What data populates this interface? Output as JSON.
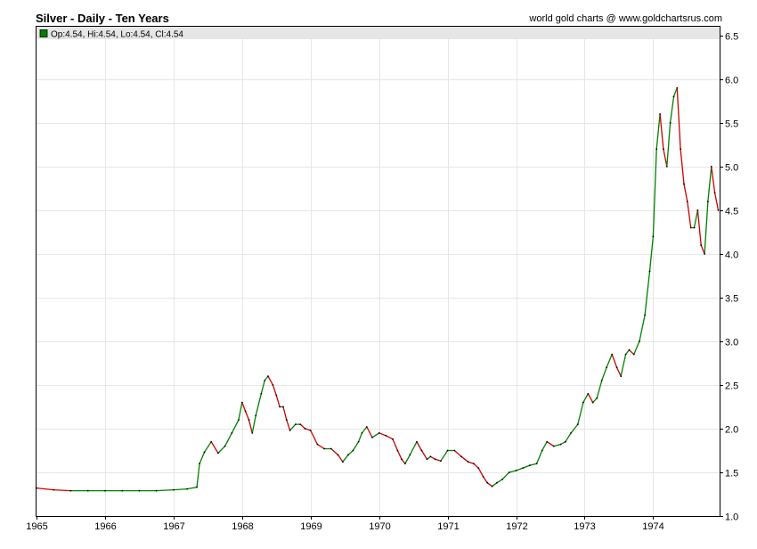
{
  "header": {
    "title": "Silver - Daily - Ten Years",
    "credit": "world gold charts @ www.goldchartsrus.com"
  },
  "legend": {
    "label": "Op:4.54, Hi:4.54, Lo:4.54, Cl:4.54",
    "swatch_color": "#008000"
  },
  "colors": {
    "up": "#008000",
    "down": "#cc0000",
    "grid": "#e6e6e6",
    "legend_bar": "#e6e6e6"
  },
  "chart_data": {
    "type": "line",
    "title": "Silver - Daily - Ten Years",
    "xlabel": "",
    "ylabel": "",
    "x_ticks": [
      "1965",
      "1966",
      "1967",
      "1968",
      "1969",
      "1970",
      "1971",
      "1972",
      "1973",
      "1974"
    ],
    "y_ticks": [
      "1.0",
      "1.5",
      "2.0",
      "2.5",
      "3.0",
      "3.5",
      "4.0",
      "4.5",
      "5.0",
      "5.5",
      "6.0",
      "6.5"
    ],
    "xlim": [
      1965.0,
      1974.97
    ],
    "ylim": [
      1.0,
      6.6
    ],
    "y_axis_position": "right",
    "grid": true,
    "legend_position": "top-left",
    "series": [
      {
        "values": [
          [
            1965.0,
            1.32
          ],
          [
            1965.25,
            1.3
          ],
          [
            1965.5,
            1.29
          ],
          [
            1965.75,
            1.29
          ],
          [
            1966.0,
            1.29
          ],
          [
            1966.25,
            1.29
          ],
          [
            1966.5,
            1.29
          ],
          [
            1966.75,
            1.29
          ],
          [
            1967.0,
            1.3
          ],
          [
            1967.2,
            1.31
          ],
          [
            1967.34,
            1.33
          ],
          [
            1967.38,
            1.6
          ],
          [
            1967.45,
            1.73
          ],
          [
            1967.55,
            1.85
          ],
          [
            1967.65,
            1.72
          ],
          [
            1967.75,
            1.8
          ],
          [
            1967.85,
            1.95
          ],
          [
            1967.95,
            2.1
          ],
          [
            1968.0,
            2.3
          ],
          [
            1968.05,
            2.2
          ],
          [
            1968.1,
            2.1
          ],
          [
            1968.15,
            1.95
          ],
          [
            1968.2,
            2.15
          ],
          [
            1968.28,
            2.4
          ],
          [
            1968.33,
            2.55
          ],
          [
            1968.38,
            2.6
          ],
          [
            1968.45,
            2.5
          ],
          [
            1968.5,
            2.38
          ],
          [
            1968.55,
            2.25
          ],
          [
            1968.6,
            2.25
          ],
          [
            1968.65,
            2.1
          ],
          [
            1968.7,
            1.98
          ],
          [
            1968.78,
            2.05
          ],
          [
            1968.85,
            2.05
          ],
          [
            1968.92,
            2.0
          ],
          [
            1969.0,
            1.98
          ],
          [
            1969.1,
            1.82
          ],
          [
            1969.2,
            1.77
          ],
          [
            1969.3,
            1.77
          ],
          [
            1969.4,
            1.7
          ],
          [
            1969.47,
            1.62
          ],
          [
            1969.55,
            1.7
          ],
          [
            1969.62,
            1.75
          ],
          [
            1969.7,
            1.85
          ],
          [
            1969.75,
            1.95
          ],
          [
            1969.82,
            2.02
          ],
          [
            1969.9,
            1.9
          ],
          [
            1970.0,
            1.95
          ],
          [
            1970.1,
            1.92
          ],
          [
            1970.2,
            1.88
          ],
          [
            1970.27,
            1.75
          ],
          [
            1970.33,
            1.65
          ],
          [
            1970.38,
            1.6
          ],
          [
            1970.45,
            1.7
          ],
          [
            1970.55,
            1.85
          ],
          [
            1970.62,
            1.75
          ],
          [
            1970.7,
            1.65
          ],
          [
            1970.75,
            1.68
          ],
          [
            1970.82,
            1.65
          ],
          [
            1970.9,
            1.63
          ],
          [
            1971.0,
            1.75
          ],
          [
            1971.1,
            1.75
          ],
          [
            1971.2,
            1.68
          ],
          [
            1971.3,
            1.62
          ],
          [
            1971.38,
            1.6
          ],
          [
            1971.45,
            1.55
          ],
          [
            1971.52,
            1.45
          ],
          [
            1971.58,
            1.38
          ],
          [
            1971.65,
            1.34
          ],
          [
            1971.72,
            1.38
          ],
          [
            1971.8,
            1.42
          ],
          [
            1971.9,
            1.5
          ],
          [
            1972.0,
            1.52
          ],
          [
            1972.1,
            1.55
          ],
          [
            1972.2,
            1.58
          ],
          [
            1972.3,
            1.6
          ],
          [
            1972.38,
            1.75
          ],
          [
            1972.45,
            1.85
          ],
          [
            1972.55,
            1.8
          ],
          [
            1972.65,
            1.82
          ],
          [
            1972.72,
            1.85
          ],
          [
            1972.8,
            1.95
          ],
          [
            1972.9,
            2.05
          ],
          [
            1972.98,
            2.3
          ],
          [
            1973.05,
            2.4
          ],
          [
            1973.12,
            2.3
          ],
          [
            1973.18,
            2.35
          ],
          [
            1973.25,
            2.55
          ],
          [
            1973.32,
            2.7
          ],
          [
            1973.4,
            2.85
          ],
          [
            1973.47,
            2.7
          ],
          [
            1973.53,
            2.6
          ],
          [
            1973.6,
            2.85
          ],
          [
            1973.65,
            2.9
          ],
          [
            1973.72,
            2.85
          ],
          [
            1973.8,
            3.0
          ],
          [
            1973.88,
            3.3
          ],
          [
            1973.95,
            3.8
          ],
          [
            1974.0,
            4.2
          ],
          [
            1974.05,
            5.2
          ],
          [
            1974.1,
            5.6
          ],
          [
            1974.15,
            5.2
          ],
          [
            1974.2,
            5.0
          ],
          [
            1974.25,
            5.5
          ],
          [
            1974.3,
            5.8
          ],
          [
            1974.35,
            5.9
          ],
          [
            1974.4,
            5.2
          ],
          [
            1974.45,
            4.8
          ],
          [
            1974.5,
            4.6
          ],
          [
            1974.55,
            4.3
          ],
          [
            1974.6,
            4.3
          ],
          [
            1974.65,
            4.5
          ],
          [
            1974.7,
            4.1
          ],
          [
            1974.75,
            4.0
          ],
          [
            1974.8,
            4.6
          ],
          [
            1974.85,
            5.0
          ],
          [
            1974.9,
            4.7
          ],
          [
            1974.95,
            4.5
          ]
        ]
      }
    ]
  }
}
